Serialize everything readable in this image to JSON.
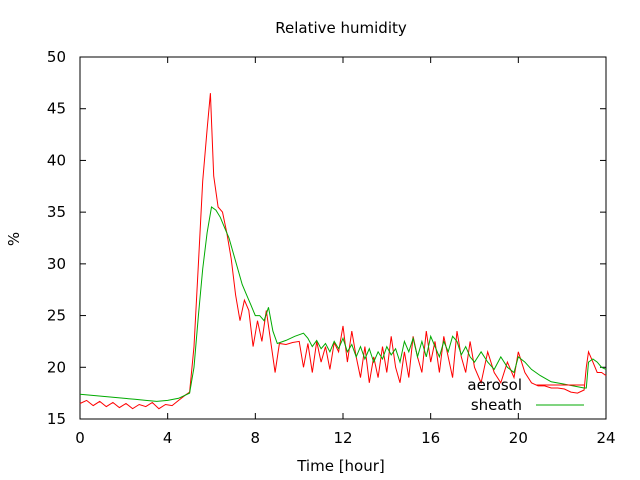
{
  "chart_data": {
    "type": "line",
    "title": "Relative humidity",
    "xlabel": "Time [hour]",
    "ylabel": "%",
    "xlim": [
      0,
      24
    ],
    "ylim": [
      15,
      50
    ],
    "xticks": [
      0,
      4,
      8,
      12,
      16,
      20,
      24
    ],
    "yticks": [
      15,
      20,
      25,
      30,
      35,
      40,
      45,
      50
    ],
    "grid": false,
    "legend_position": "bottom-right",
    "series": [
      {
        "name": "aerosol",
        "color": "#ff0000",
        "x": [
          0,
          0.3,
          0.6,
          0.9,
          1.2,
          1.5,
          1.8,
          2.1,
          2.4,
          2.7,
          3.0,
          3.3,
          3.6,
          3.9,
          4.2,
          4.5,
          4.8,
          5.0,
          5.2,
          5.4,
          5.6,
          5.8,
          5.95,
          6.1,
          6.3,
          6.5,
          6.7,
          6.9,
          7.1,
          7.3,
          7.5,
          7.7,
          7.9,
          8.1,
          8.3,
          8.5,
          8.7,
          8.9,
          9.1,
          9.4,
          9.7,
          10.0,
          10.2,
          10.4,
          10.6,
          10.8,
          11.0,
          11.2,
          11.4,
          11.6,
          11.8,
          12.0,
          12.2,
          12.4,
          12.6,
          12.8,
          13.0,
          13.2,
          13.4,
          13.6,
          13.8,
          14.0,
          14.2,
          14.4,
          14.6,
          14.8,
          15.0,
          15.2,
          15.4,
          15.6,
          15.8,
          16.0,
          16.2,
          16.4,
          16.6,
          16.8,
          17.0,
          17.2,
          17.4,
          17.6,
          17.8,
          18.0,
          18.3,
          18.6,
          18.9,
          19.2,
          19.5,
          19.8,
          20.0,
          20.3,
          20.6,
          20.9,
          21.2,
          21.5,
          21.8,
          22.1,
          22.4,
          22.7,
          23.0,
          23.1,
          23.2,
          23.4,
          23.6,
          23.8,
          24.0
        ],
        "values": [
          16.5,
          16.8,
          16.3,
          16.7,
          16.2,
          16.6,
          16.1,
          16.5,
          16.0,
          16.4,
          16.2,
          16.6,
          16.0,
          16.4,
          16.3,
          16.8,
          17.3,
          17.6,
          22.0,
          30.0,
          38.0,
          43.0,
          46.5,
          38.5,
          35.5,
          35.0,
          33.0,
          30.5,
          27.0,
          24.5,
          26.5,
          25.5,
          22.0,
          24.5,
          22.5,
          25.5,
          22.5,
          19.5,
          22.3,
          22.2,
          22.4,
          22.5,
          20.0,
          22.3,
          19.5,
          22.5,
          20.5,
          22.0,
          19.8,
          22.4,
          21.5,
          24.0,
          20.5,
          23.5,
          21.0,
          19.0,
          22.0,
          18.5,
          21.0,
          19.0,
          22.0,
          19.5,
          23.0,
          20.0,
          18.5,
          21.5,
          19.0,
          23.0,
          21.0,
          19.5,
          23.5,
          20.5,
          22.5,
          19.5,
          23.0,
          21.0,
          19.0,
          23.5,
          21.0,
          19.5,
          22.5,
          20.0,
          18.5,
          21.5,
          19.5,
          18.5,
          20.5,
          19.0,
          21.5,
          19.5,
          18.5,
          18.2,
          18.2,
          18.0,
          18.0,
          17.9,
          17.6,
          17.5,
          17.8,
          20.0,
          21.5,
          20.5,
          19.5,
          19.5,
          19.2
        ]
      },
      {
        "name": "sheath",
        "color": "#00aa00",
        "x": [
          0,
          0.5,
          1.0,
          1.5,
          2.0,
          2.5,
          3.0,
          3.5,
          4.0,
          4.5,
          5.0,
          5.2,
          5.4,
          5.6,
          5.8,
          6.0,
          6.2,
          6.4,
          6.6,
          6.8,
          7.0,
          7.2,
          7.4,
          7.6,
          7.8,
          8.0,
          8.2,
          8.4,
          8.6,
          8.8,
          9.0,
          9.4,
          9.8,
          10.2,
          10.4,
          10.6,
          10.8,
          11.0,
          11.2,
          11.4,
          11.6,
          11.8,
          12.0,
          12.2,
          12.4,
          12.6,
          12.8,
          13.0,
          13.2,
          13.4,
          13.6,
          13.8,
          14.0,
          14.2,
          14.4,
          14.6,
          14.8,
          15.0,
          15.2,
          15.4,
          15.6,
          15.8,
          16.0,
          16.2,
          16.4,
          16.6,
          16.8,
          17.0,
          17.2,
          17.4,
          17.6,
          17.8,
          18.0,
          18.3,
          18.6,
          18.9,
          19.2,
          19.5,
          19.8,
          20.0,
          20.3,
          20.6,
          21.0,
          21.5,
          22.0,
          22.5,
          23.0,
          23.1,
          23.2,
          23.4,
          23.6,
          23.8,
          24.0
        ],
        "values": [
          17.4,
          17.3,
          17.2,
          17.1,
          17.0,
          16.9,
          16.8,
          16.7,
          16.8,
          17.0,
          17.5,
          20.0,
          25.0,
          29.5,
          33.0,
          35.5,
          35.2,
          34.5,
          33.5,
          32.5,
          31.0,
          29.5,
          28.0,
          27.0,
          26.0,
          25.0,
          25.0,
          24.5,
          25.8,
          23.5,
          22.3,
          22.6,
          23.0,
          23.3,
          22.8,
          22.0,
          22.6,
          21.8,
          22.3,
          21.5,
          22.5,
          21.8,
          22.8,
          21.5,
          22.2,
          21.0,
          22.0,
          20.8,
          21.8,
          20.5,
          21.5,
          20.8,
          22.0,
          21.2,
          21.8,
          20.5,
          22.5,
          21.5,
          22.8,
          21.0,
          22.5,
          21.0,
          23.0,
          22.0,
          21.0,
          22.5,
          21.5,
          23.0,
          22.5,
          21.2,
          22.0,
          21.0,
          20.5,
          21.5,
          20.5,
          19.8,
          21.0,
          20.0,
          19.5,
          21.0,
          20.5,
          19.8,
          19.2,
          18.6,
          18.4,
          18.2,
          18.0,
          18.0,
          20.5,
          20.8,
          20.5,
          20.0,
          19.8
        ]
      }
    ]
  }
}
